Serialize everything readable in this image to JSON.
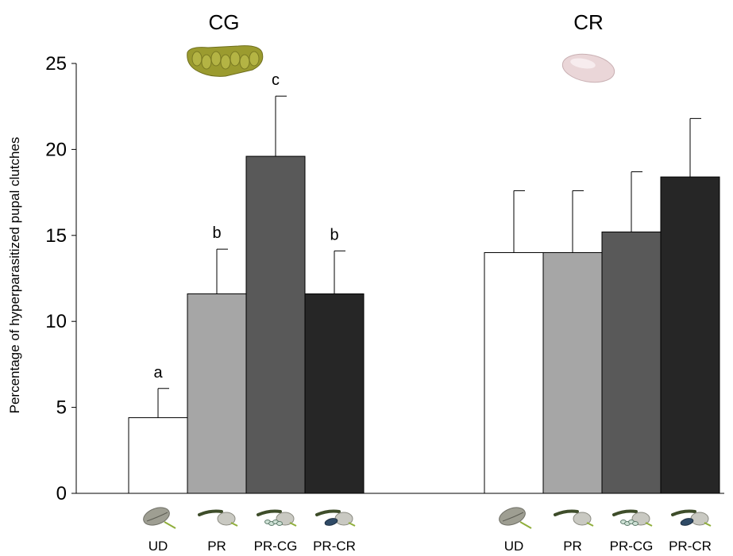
{
  "chart_data": {
    "type": "bar",
    "ylabel": "Percentage of hyperparasitized pupal clutches",
    "ylim": [
      0,
      25
    ],
    "yticks": [
      0,
      5,
      10,
      15,
      20,
      25
    ],
    "grid": false,
    "panels": [
      {
        "title": "CG",
        "categories": [
          "UD",
          "PR",
          "PR-CG",
          "PR-CR"
        ],
        "values": [
          4.4,
          11.6,
          19.6,
          11.6
        ],
        "errors": [
          1.7,
          2.6,
          3.5,
          2.5
        ],
        "significance": [
          "a",
          "b",
          "c",
          "b"
        ],
        "colors": [
          "#ffffff",
          "#a6a6a6",
          "#595959",
          "#262626"
        ]
      },
      {
        "title": "CR",
        "categories": [
          "UD",
          "PR",
          "PR-CG",
          "PR-CR"
        ],
        "values": [
          14.0,
          14.0,
          15.2,
          18.4
        ],
        "errors": [
          3.6,
          3.6,
          3.5,
          3.4
        ],
        "significance": [
          "",
          "",
          "",
          ""
        ],
        "colors": [
          "#ffffff",
          "#a6a6a6",
          "#595959",
          "#262626"
        ]
      }
    ]
  }
}
